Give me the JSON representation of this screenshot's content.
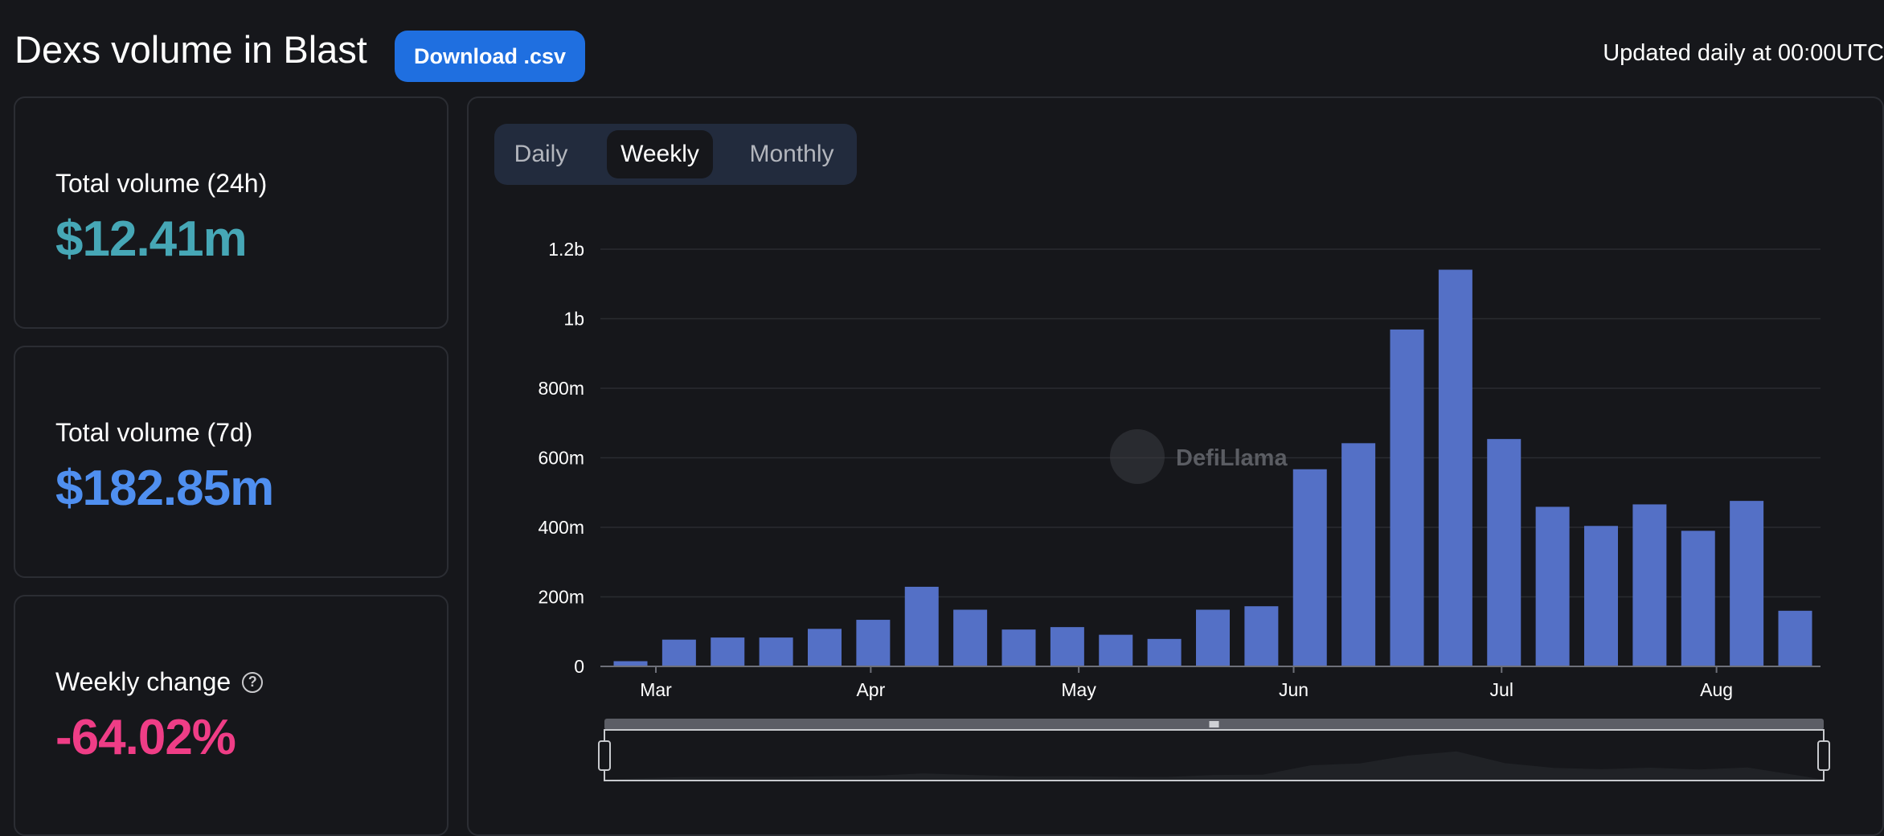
{
  "header": {
    "title": "Dexs volume in Blast",
    "download_label": "Download .csv",
    "updated_text": "Updated daily at 00:00UTC"
  },
  "stats": [
    {
      "label": "Total volume (24h)",
      "value": "$12.41m",
      "color": "#46a7b6"
    },
    {
      "label": "Total volume (7d)",
      "value": "$182.85m",
      "color": "#4f8ff0"
    },
    {
      "label": "Weekly change",
      "value": "-64.02%",
      "color": "#ef3d86",
      "help_icon": "question-circle-icon"
    }
  ],
  "tabs": [
    {
      "label": "Daily",
      "active": false
    },
    {
      "label": "Weekly",
      "active": true
    },
    {
      "label": "Monthly",
      "active": false
    }
  ],
  "watermark": "DefiLlama",
  "colors": {
    "bar": "#5470c6",
    "grid": "#2a2c31",
    "background": "#16171b"
  },
  "chart_data": {
    "type": "bar",
    "y_tick_labels": [
      "0",
      "200m",
      "400m",
      "600m",
      "800m",
      "1b",
      "1.2b"
    ],
    "ylim": [
      0,
      1200000000
    ],
    "x_tick_labels": [
      "Mar",
      "Apr",
      "May",
      "Jun",
      "Jul",
      "Aug"
    ],
    "x_tick_dates": [
      "2024-03-01",
      "2024-04-01",
      "2024-05-01",
      "2024-06-01",
      "2024-07-01",
      "2024-08-01"
    ],
    "grid": true,
    "series": [
      {
        "x": [
          "2024-02-26",
          "2024-03-04",
          "2024-03-11",
          "2024-03-18",
          "2024-03-25",
          "2024-04-01",
          "2024-04-08",
          "2024-04-15",
          "2024-04-22",
          "2024-04-29",
          "2024-05-06",
          "2024-05-13",
          "2024-05-20",
          "2024-05-27",
          "2024-06-03",
          "2024-06-10",
          "2024-06-17",
          "2024-06-24",
          "2024-07-01",
          "2024-07-08",
          "2024-07-15",
          "2024-07-22",
          "2024-07-29",
          "2024-08-05",
          "2024-08-12"
        ],
        "values": [
          15000000,
          77000000,
          83000000,
          83000000,
          108000000,
          134000000,
          229000000,
          163000000,
          106000000,
          113000000,
          91000000,
          79000000,
          163000000,
          173000000,
          567000000,
          642000000,
          969000000,
          1141000000,
          654000000,
          459000000,
          404000000,
          466000000,
          390000000,
          476000000,
          160000000
        ]
      }
    ],
    "data_zoom": {
      "range_percent": [
        0,
        100
      ]
    }
  }
}
